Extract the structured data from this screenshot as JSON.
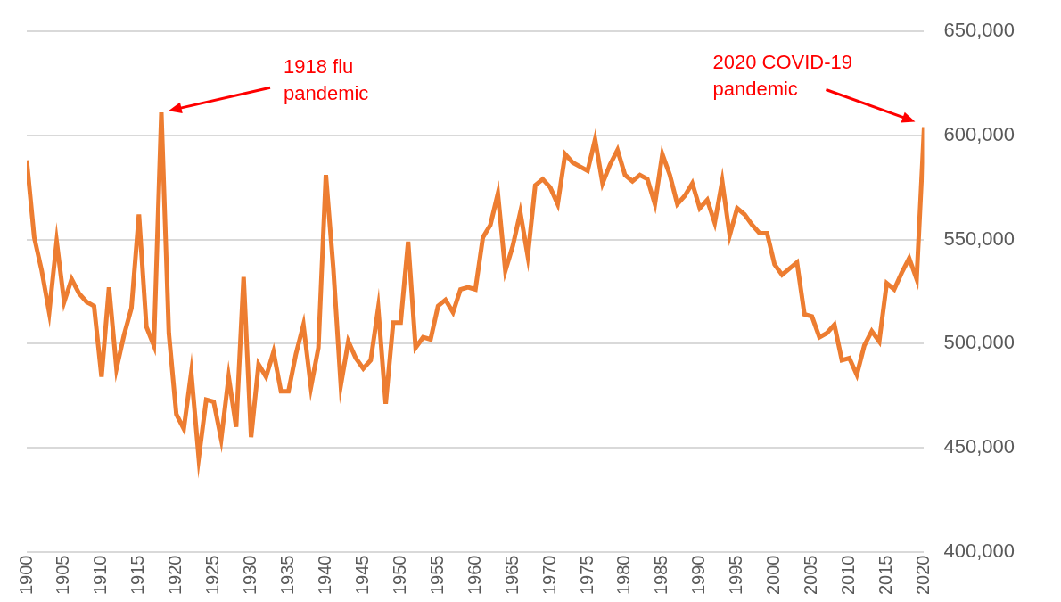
{
  "chart_data": {
    "type": "line",
    "x": [
      1900,
      1901,
      1902,
      1903,
      1904,
      1905,
      1906,
      1907,
      1908,
      1909,
      1910,
      1911,
      1912,
      1913,
      1914,
      1915,
      1916,
      1917,
      1918,
      1919,
      1920,
      1921,
      1922,
      1923,
      1924,
      1925,
      1926,
      1927,
      1928,
      1929,
      1930,
      1931,
      1932,
      1933,
      1934,
      1935,
      1936,
      1937,
      1938,
      1939,
      1940,
      1941,
      1942,
      1943,
      1944,
      1945,
      1946,
      1947,
      1948,
      1949,
      1950,
      1951,
      1952,
      1953,
      1954,
      1955,
      1956,
      1957,
      1958,
      1959,
      1960,
      1961,
      1962,
      1963,
      1964,
      1965,
      1966,
      1967,
      1968,
      1969,
      1970,
      1971,
      1972,
      1973,
      1974,
      1975,
      1976,
      1977,
      1978,
      1979,
      1980,
      1981,
      1982,
      1983,
      1984,
      1985,
      1986,
      1987,
      1988,
      1989,
      1990,
      1991,
      1992,
      1993,
      1994,
      1995,
      1996,
      1997,
      1998,
      1999,
      2000,
      2001,
      2002,
      2003,
      2004,
      2005,
      2006,
      2007,
      2008,
      2009,
      2010,
      2011,
      2012,
      2013,
      2014,
      2015,
      2016,
      2017,
      2018,
      2019,
      2020
    ],
    "values": [
      588000,
      551000,
      535000,
      515000,
      549000,
      520000,
      531000,
      524000,
      520000,
      518000,
      484000,
      527000,
      488000,
      504000,
      517000,
      562000,
      508000,
      499000,
      611000,
      505000,
      466000,
      459000,
      486000,
      445000,
      473000,
      472000,
      454000,
      484000,
      460000,
      532000,
      455000,
      490000,
      484000,
      496000,
      477000,
      477000,
      495000,
      509000,
      479000,
      498000,
      581000,
      536000,
      480000,
      501000,
      493000,
      488000,
      492000,
      517000,
      471000,
      510000,
      510000,
      549000,
      498000,
      503000,
      502000,
      518000,
      521000,
      515000,
      526000,
      527000,
      526000,
      551000,
      557000,
      572000,
      535000,
      547000,
      563000,
      542000,
      576000,
      579000,
      575000,
      567000,
      591000,
      587000,
      585000,
      583000,
      598000,
      577000,
      586000,
      593000,
      581000,
      578000,
      581000,
      579000,
      567000,
      591000,
      581000,
      567000,
      571000,
      577000,
      565000,
      569000,
      558000,
      578000,
      552000,
      565000,
      562000,
      557000,
      553000,
      553000,
      538000,
      533000,
      536000,
      539000,
      514000,
      513000,
      503000,
      505000,
      509000,
      492000,
      493000,
      485000,
      499000,
      506000,
      501000,
      529000,
      526000,
      534000,
      541000,
      531000,
      604000
    ],
    "color": "#ed7d31",
    "xlim": [
      1900,
      2020
    ],
    "xticks": [
      1900,
      1905,
      1910,
      1915,
      1920,
      1925,
      1930,
      1935,
      1940,
      1945,
      1950,
      1955,
      1960,
      1965,
      1970,
      1975,
      1980,
      1985,
      1990,
      1995,
      2000,
      2005,
      2010,
      2015,
      2020
    ],
    "ylim": [
      400000,
      650000
    ],
    "yticks": [
      {
        "value": 400000,
        "label": "400,000"
      },
      {
        "value": 450000,
        "label": "450,000"
      },
      {
        "value": 500000,
        "label": "500,000"
      },
      {
        "value": 550000,
        "label": "550,000"
      },
      {
        "value": 600000,
        "label": "600,000"
      },
      {
        "value": 650000,
        "label": "650,000"
      }
    ],
    "grid": true,
    "annotations": [
      {
        "text": [
          "1918 flu",
          "pandemic"
        ],
        "x": 1918
      },
      {
        "text": [
          "2020 COVID-19",
          "pandemic"
        ],
        "x": 2020
      }
    ]
  }
}
